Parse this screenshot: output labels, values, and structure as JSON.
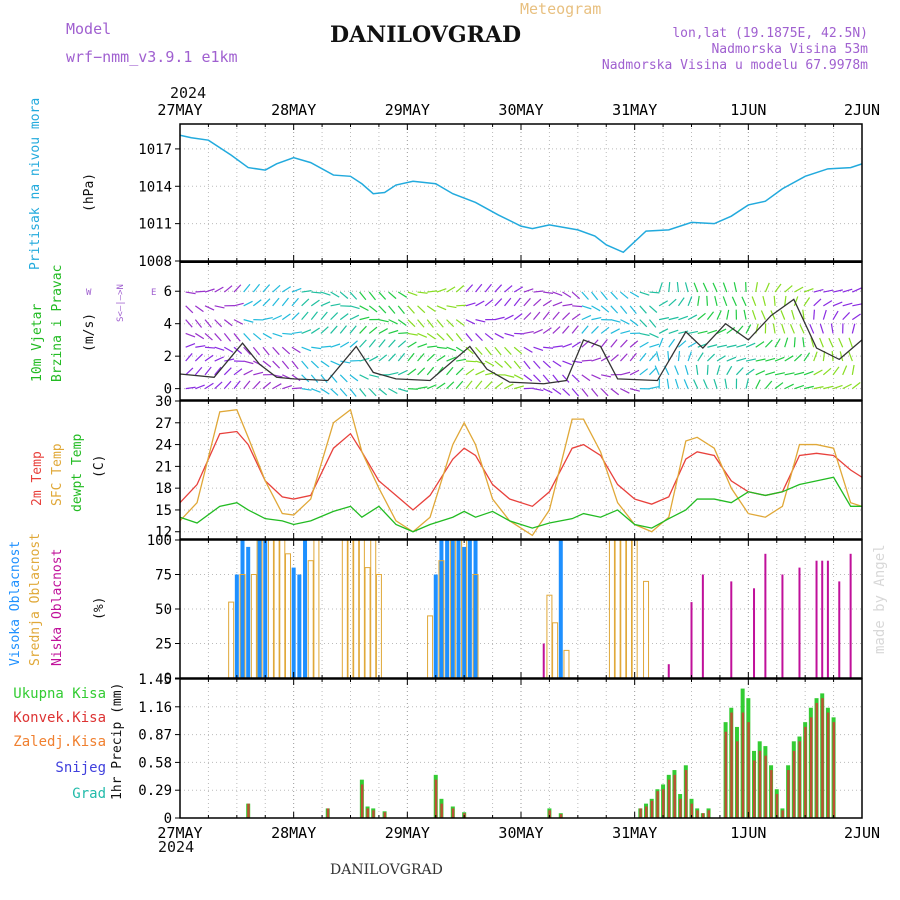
{
  "header": {
    "model_label": "Model",
    "model_name": "wrf−nmm_v3.9.1  e1km",
    "title": "DANILOVGRAD",
    "subtitle": "Meteogram",
    "lonlat": "lon,lat (19.1875E, 42.5N)",
    "elevation": "Nadmorska Visina 53m",
    "model_elevation": "Nadmorska Visina u modelu 67.9978m"
  },
  "footer": {
    "station": "DANILOVGRAD",
    "credit": "made by Angel"
  },
  "time_axis": {
    "year": "2024",
    "labels": [
      "27MAY",
      "28MAY",
      "29MAY",
      "30MAY",
      "31MAY",
      "1JUN",
      "2JUN"
    ]
  },
  "colors": {
    "pressure": "#22aadd",
    "temp2m": "#e8413c",
    "sfc": "#e0a838",
    "dewpt": "#22bb22",
    "high_cloud": "#1e90ff",
    "mid_cloud": "#e0a838",
    "low_cloud": "#c0109a",
    "total_precip": "#33cc33",
    "conv_precip": "#dd3333",
    "wind_speed": "#333333"
  },
  "panels": {
    "pressure": {
      "ylabel_name": "Pritisak na nivou mora",
      "unit": "(hPa)"
    },
    "wind": {
      "ylabel_line1": "10m Vjetar",
      "ylabel_line2": "Brzina i Pravac",
      "unit": "(m/s)",
      "compass_w": "W",
      "compass_e": "E",
      "compass_ns": "S<—|—>N"
    },
    "temp": {
      "lab1": "2m Temp",
      "lab2": "SFC Temp",
      "lab3": "dewpt Temp",
      "unit": "(C)"
    },
    "cloud": {
      "lab1": "Visoka Oblacnost",
      "lab2": "Srednja Oblacnost",
      "lab3": "Niska Oblacnost",
      "unit": "(%)"
    },
    "precip": {
      "ylabel": "1hr Precip (mm)",
      "legend": [
        "Ukupna Kisa",
        "Konvek.Kisa",
        "Zaledj.Kisa",
        "Snijeg",
        "Grad"
      ]
    }
  },
  "chart_data": [
    {
      "type": "line",
      "panel": "pressure",
      "ylim": [
        1008,
        1019
      ],
      "yticks": [
        1008,
        1011,
        1014,
        1017
      ],
      "x_days": [
        0,
        0.1,
        0.25,
        0.45,
        0.6,
        0.75,
        0.85,
        1.0,
        1.15,
        1.35,
        1.5,
        1.6,
        1.7,
        1.8,
        1.9,
        2.05,
        2.25,
        2.4,
        2.6,
        2.8,
        3.0,
        3.1,
        3.25,
        3.5,
        3.65,
        3.75,
        3.9,
        4.1,
        4.3,
        4.5,
        4.7,
        4.85,
        5.0,
        5.15,
        5.3,
        5.5,
        5.7,
        5.9,
        6.0
      ],
      "series": [
        {
          "values": [
            1018.1,
            1017.9,
            1017.7,
            1016.5,
            1015.5,
            1015.3,
            1015.8,
            1016.3,
            1015.9,
            1014.9,
            1014.8,
            1014.2,
            1013.4,
            1013.5,
            1014.1,
            1014.4,
            1014.2,
            1013.4,
            1012.7,
            1011.7,
            1010.8,
            1010.6,
            1010.9,
            1010.5,
            1010.0,
            1009.3,
            1008.7,
            1010.4,
            1010.5,
            1011.1,
            1011.0,
            1011.6,
            1012.5,
            1012.8,
            1013.8,
            1014.8,
            1015.4,
            1015.5,
            1015.8
          ]
        }
      ]
    },
    {
      "type": "line",
      "panel": "wind",
      "ylim": [
        -0.7,
        7.8
      ],
      "yticks": [
        0,
        2,
        4,
        6
      ],
      "x_days": [
        0,
        0.3,
        0.55,
        0.7,
        0.85,
        1.0,
        1.3,
        1.55,
        1.7,
        1.9,
        2.2,
        2.55,
        2.7,
        2.9,
        3.2,
        3.4,
        3.55,
        3.7,
        3.85,
        4.2,
        4.45,
        4.6,
        4.8,
        5.0,
        5.2,
        5.4,
        5.6,
        5.8,
        6.0
      ],
      "series": [
        {
          "name": "speed",
          "values": [
            0.9,
            0.7,
            2.8,
            1.5,
            0.7,
            0.6,
            0.5,
            2.6,
            1.0,
            0.6,
            0.5,
            2.6,
            1.2,
            0.4,
            0.3,
            0.5,
            3.0,
            2.6,
            0.6,
            0.5,
            3.5,
            2.5,
            4.0,
            3.0,
            4.5,
            5.5,
            2.5,
            1.8,
            3.0
          ]
        }
      ]
    },
    {
      "type": "line",
      "panel": "temp",
      "ylim": [
        11,
        30
      ],
      "yticks": [
        12,
        15,
        18,
        21,
        24,
        27,
        30
      ],
      "x_days": [
        0,
        0.15,
        0.35,
        0.5,
        0.6,
        0.75,
        0.9,
        1.0,
        1.15,
        1.35,
        1.5,
        1.6,
        1.75,
        1.9,
        2.05,
        2.2,
        2.4,
        2.5,
        2.6,
        2.75,
        2.9,
        3.1,
        3.25,
        3.45,
        3.55,
        3.7,
        3.85,
        4.0,
        4.15,
        4.3,
        4.45,
        4.55,
        4.7,
        4.85,
        5.0,
        5.15,
        5.3,
        5.45,
        5.6,
        5.75,
        5.9,
        6.0
      ],
      "series": [
        {
          "name": "2m Temp",
          "values": [
            16.0,
            18.5,
            25.5,
            25.8,
            24.0,
            19.0,
            16.8,
            16.5,
            17.0,
            23.5,
            25.5,
            23.0,
            19.0,
            17.0,
            15.0,
            17.0,
            22.0,
            23.5,
            22.5,
            18.5,
            16.5,
            15.5,
            17.5,
            23.5,
            24.0,
            22.5,
            18.5,
            16.5,
            15.8,
            16.8,
            22.0,
            23.0,
            22.5,
            19.0,
            17.5,
            17.0,
            17.5,
            22.5,
            22.8,
            22.5,
            20.5,
            19.5
          ]
        },
        {
          "name": "SFC Temp",
          "values": [
            13.5,
            16.0,
            28.5,
            28.8,
            25.0,
            19.0,
            14.5,
            14.3,
            16.5,
            27.0,
            28.8,
            23.0,
            18.0,
            13.5,
            12.0,
            14.0,
            24.0,
            27.0,
            24.0,
            16.5,
            13.5,
            11.5,
            15.0,
            27.5,
            27.5,
            23.0,
            16.0,
            13.0,
            12.0,
            14.0,
            24.5,
            25.0,
            23.5,
            18.0,
            14.5,
            14.0,
            15.5,
            24.0,
            24.0,
            23.5,
            16.0,
            15.5
          ]
        },
        {
          "name": "dewpt Temp",
          "values": [
            14.0,
            13.2,
            15.5,
            16.0,
            15.0,
            13.8,
            13.5,
            13.0,
            13.5,
            14.8,
            15.5,
            14.0,
            15.5,
            13.0,
            12.0,
            13.0,
            14.0,
            14.8,
            14.0,
            14.8,
            13.5,
            12.5,
            13.2,
            13.8,
            14.5,
            14.0,
            15.0,
            13.0,
            12.5,
            13.8,
            15.0,
            16.5,
            16.5,
            16.0,
            17.5,
            17.0,
            17.5,
            18.5,
            19.0,
            19.5,
            15.5,
            15.5
          ]
        }
      ]
    },
    {
      "type": "bar",
      "panel": "cloud",
      "ylim": [
        0,
        100
      ],
      "yticks": [
        0,
        25,
        50,
        75,
        100
      ],
      "series": [
        {
          "name": "Visoka Oblacnost",
          "x_days": [
            0.5,
            0.55,
            0.6,
            0.7,
            0.75,
            1.0,
            1.05,
            1.1,
            2.25,
            2.3,
            2.35,
            2.4,
            2.45,
            2.5,
            2.55,
            2.6,
            3.35
          ],
          "values": [
            75,
            100,
            95,
            100,
            100,
            80,
            75,
            100,
            75,
            100,
            100,
            100,
            100,
            95,
            100,
            100,
            100
          ]
        },
        {
          "name": "Srednja Oblacnost",
          "x_days": [
            0.45,
            0.55,
            0.65,
            0.7,
            0.8,
            0.85,
            0.9,
            0.95,
            1.15,
            1.2,
            1.45,
            1.5,
            1.55,
            1.6,
            1.65,
            1.7,
            1.75,
            2.2,
            2.3,
            2.4,
            2.5,
            2.6,
            3.25,
            3.3,
            3.4,
            3.8,
            3.85,
            3.9,
            3.95,
            4.0,
            4.1
          ],
          "values": [
            55,
            75,
            75,
            100,
            100,
            100,
            100,
            90,
            85,
            100,
            100,
            100,
            100,
            100,
            80,
            100,
            75,
            45,
            85,
            100,
            100,
            75,
            60,
            40,
            20,
            100,
            100,
            100,
            100,
            100,
            70
          ]
        },
        {
          "name": "Niska Oblacnost",
          "x_days": [
            3.2,
            4.3,
            4.5,
            4.6,
            4.85,
            5.05,
            5.15,
            5.3,
            5.45,
            5.6,
            5.65,
            5.7,
            5.8,
            5.9
          ],
          "values": [
            25,
            10,
            55,
            75,
            70,
            65,
            90,
            75,
            80,
            85,
            85,
            85,
            70,
            90
          ]
        }
      ]
    },
    {
      "type": "bar",
      "panel": "precip",
      "ylim": [
        0,
        1.45
      ],
      "yticks": [
        0,
        0.29,
        0.58,
        0.87,
        1.16,
        1.45
      ],
      "x_days": [
        0.6,
        1.3,
        1.6,
        1.65,
        1.7,
        1.8,
        2.25,
        2.3,
        2.4,
        2.5,
        3.25,
        3.35,
        4.05,
        4.1,
        4.15,
        4.2,
        4.25,
        4.3,
        4.35,
        4.4,
        4.45,
        4.5,
        4.55,
        4.6,
        4.65,
        4.8,
        4.85,
        4.9,
        4.95,
        5.0,
        5.05,
        5.1,
        5.15,
        5.2,
        5.25,
        5.3,
        5.35,
        5.4,
        5.45,
        5.5,
        5.55,
        5.6,
        5.65,
        5.7,
        5.75
      ],
      "series": [
        {
          "name": "Ukupna Kisa",
          "values": [
            0.15,
            0.1,
            0.4,
            0.12,
            0.1,
            0.07,
            0.45,
            0.2,
            0.12,
            0.06,
            0.1,
            0.05,
            0.1,
            0.15,
            0.2,
            0.3,
            0.35,
            0.45,
            0.5,
            0.25,
            0.55,
            0.2,
            0.1,
            0.05,
            0.1,
            1.0,
            1.15,
            0.95,
            1.35,
            1.25,
            0.7,
            0.8,
            0.75,
            0.55,
            0.3,
            0.1,
            0.55,
            0.8,
            0.85,
            1.0,
            1.15,
            1.25,
            1.3,
            1.15,
            1.05
          ]
        },
        {
          "name": "Konvek.Kisa",
          "values": [
            0.15,
            0.1,
            0.35,
            0.1,
            0.08,
            0.06,
            0.4,
            0.15,
            0.1,
            0.05,
            0.08,
            0.04,
            0.1,
            0.12,
            0.18,
            0.28,
            0.3,
            0.4,
            0.45,
            0.2,
            0.5,
            0.15,
            0.08,
            0.05,
            0.08,
            0.9,
            1.1,
            0.8,
            1.1,
            1.0,
            0.6,
            0.7,
            0.65,
            0.5,
            0.25,
            0.08,
            0.5,
            0.7,
            0.8,
            0.95,
            1.05,
            1.2,
            1.25,
            1.1,
            1.0
          ]
        }
      ]
    }
  ]
}
